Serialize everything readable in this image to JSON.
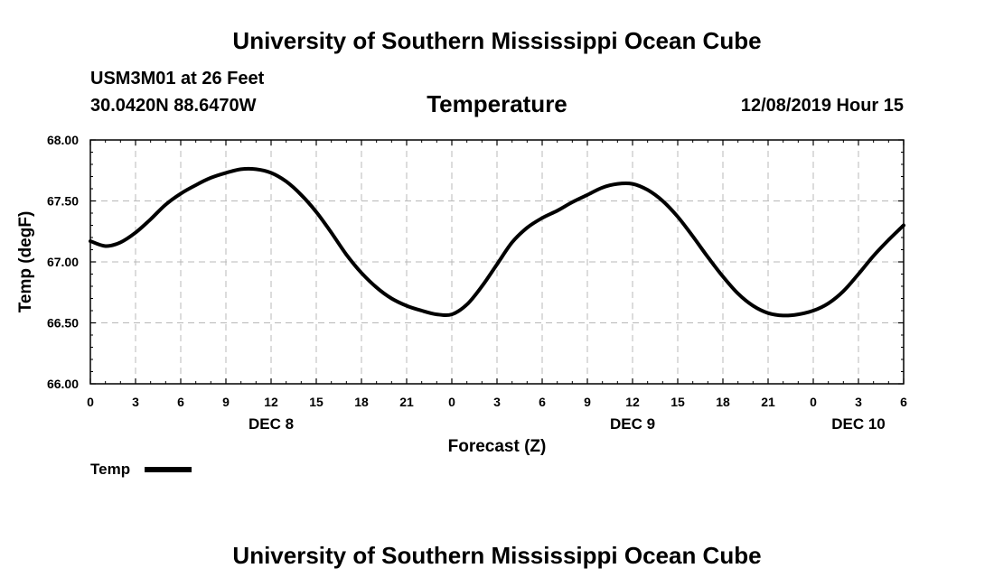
{
  "header": {
    "title": "University of Southern Mississippi Ocean Cube",
    "station": "USM3M01 at 26 Feet",
    "location": "30.0420N 88.6470W",
    "plot_title": "Temperature",
    "run_time": "12/08/2019 Hour 15"
  },
  "footer": {
    "title": "University of Southern Mississippi Ocean Cube"
  },
  "chart_data": {
    "type": "line",
    "title": "Temperature",
    "xlabel": "Forecast (Z)",
    "ylabel": "Temp (degF)",
    "xlim": [
      0,
      54
    ],
    "ylim": [
      66.0,
      68.0
    ],
    "grid": true,
    "x_ticks": [
      0,
      3,
      6,
      9,
      12,
      15,
      18,
      21,
      24,
      27,
      30,
      33,
      36,
      39,
      42,
      45,
      48,
      51,
      54
    ],
    "x_tick_labels": [
      "0",
      "3",
      "6",
      "9",
      "12",
      "15",
      "18",
      "21",
      "0",
      "3",
      "6",
      "9",
      "12",
      "15",
      "18",
      "21",
      "0",
      "3",
      "6"
    ],
    "y_ticks": [
      66.0,
      66.5,
      67.0,
      67.5,
      68.0
    ],
    "y_tick_labels": [
      "66.00",
      "66.50",
      "67.00",
      "67.50",
      "68.00"
    ],
    "day_labels": [
      {
        "x": 12,
        "label": "DEC 8"
      },
      {
        "x": 36,
        "label": "DEC 9"
      },
      {
        "x": 51,
        "label": "DEC 10"
      }
    ],
    "legend": {
      "position": "bottom-left",
      "entries": [
        "Temp"
      ]
    },
    "series": [
      {
        "name": "Temp",
        "color": "#000000",
        "x": [
          0,
          1,
          2,
          3,
          4,
          5,
          6,
          7,
          8,
          9,
          10,
          11,
          12,
          13,
          14,
          15,
          16,
          17,
          18,
          19,
          20,
          21,
          22,
          23,
          24,
          25,
          26,
          27,
          28,
          29,
          30,
          31,
          32,
          33,
          34,
          35,
          36,
          37,
          38,
          39,
          40,
          41,
          42,
          43,
          44,
          45,
          46,
          47,
          48,
          49,
          50,
          51,
          52,
          53,
          54
        ],
        "values": [
          67.17,
          67.13,
          67.16,
          67.24,
          67.35,
          67.47,
          67.56,
          67.63,
          67.69,
          67.73,
          67.76,
          67.76,
          67.73,
          67.66,
          67.55,
          67.41,
          67.24,
          67.06,
          66.91,
          66.79,
          66.7,
          66.64,
          66.6,
          66.57,
          66.57,
          66.65,
          66.8,
          66.98,
          67.16,
          67.28,
          67.36,
          67.42,
          67.49,
          67.55,
          67.61,
          67.64,
          67.64,
          67.59,
          67.5,
          67.37,
          67.21,
          67.04,
          66.88,
          66.74,
          66.64,
          66.58,
          66.56,
          66.57,
          66.6,
          66.66,
          66.76,
          66.9,
          67.05,
          67.18,
          67.3
        ]
      }
    ]
  }
}
